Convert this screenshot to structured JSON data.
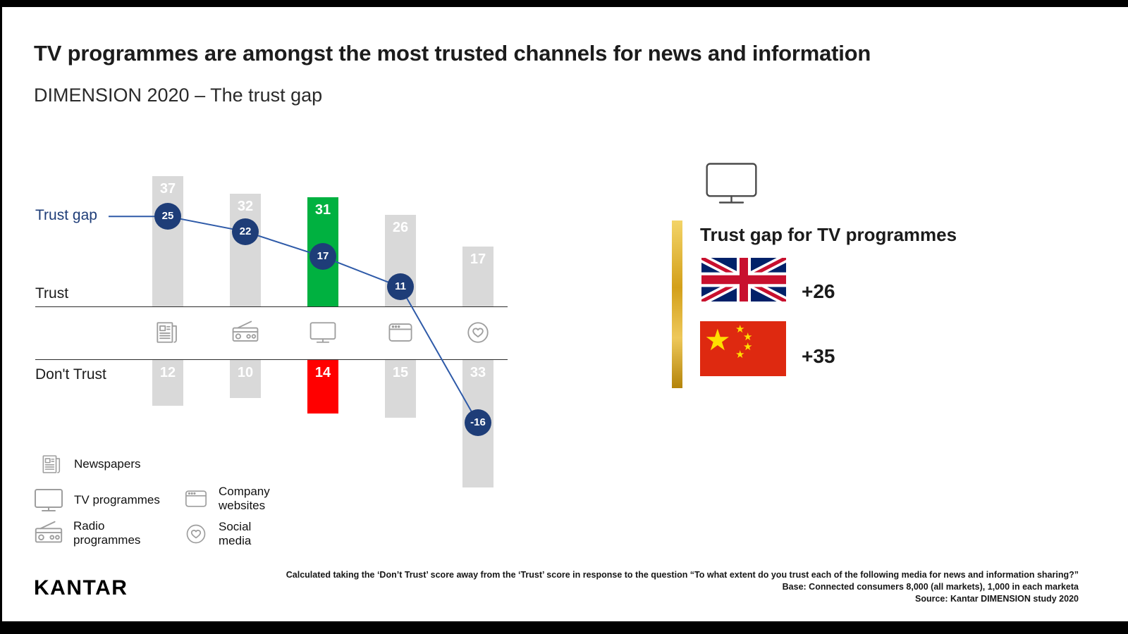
{
  "page": {
    "title": "TV programmes are amongst the most trusted channels for news and information",
    "subtitle": "DIMENSION 2020 – The trust gap"
  },
  "chart_data": {
    "type": "bar",
    "categories": [
      "Newspapers",
      "Radio programmes",
      "TV programmes",
      "Company websites",
      "Social media"
    ],
    "icons": [
      "newspaper-icon",
      "radio-icon",
      "tv-icon",
      "browser-icon",
      "heart-icon"
    ],
    "series": [
      {
        "name": "Trust",
        "values": [
          37,
          32,
          31,
          26,
          17
        ]
      },
      {
        "name": "Don't Trust",
        "values": [
          12,
          10,
          14,
          15,
          33
        ]
      },
      {
        "name": "Trust gap",
        "values": [
          25,
          22,
          17,
          11,
          -16
        ]
      }
    ],
    "labels": {
      "trust_gap": "Trust gap",
      "trust": "Trust",
      "dont_trust": "Don't Trust"
    },
    "highlight_category": "TV programmes",
    "colors": {
      "bar_grey": "#D9D9D9",
      "trust_highlight": "#00B140",
      "dont_trust_highlight": "#FF0000",
      "gap_line": "#2E5AA8",
      "gap_circle": "#1E3D78"
    }
  },
  "legend": [
    {
      "icon": "newspaper-icon",
      "label": "Newspapers"
    },
    {
      "icon": "tv-icon",
      "label": "TV programmes"
    },
    {
      "icon": "radio-icon",
      "label": "Radio programmes"
    },
    {
      "icon": "browser-icon",
      "label": "Company websites"
    },
    {
      "icon": "heart-icon",
      "label": "Social media"
    }
  ],
  "panel": {
    "heading": "Trust gap for TV programmes",
    "items": [
      {
        "flag": "uk-flag",
        "value": "+26"
      },
      {
        "flag": "china-flag",
        "value": "+35"
      }
    ]
  },
  "footer": {
    "logo": "KANTAR",
    "note_line1": "Calculated taking the ‘Don’t Trust’ score away from the ‘Trust’ score in response to the question “To what extent do you trust each of the following media for news and information sharing?”",
    "note_line2": "Base: Connected consumers 8,000 (all markets), 1,000 in each marketa",
    "note_line3": "Source: Kantar DIMENSION study 2020"
  }
}
